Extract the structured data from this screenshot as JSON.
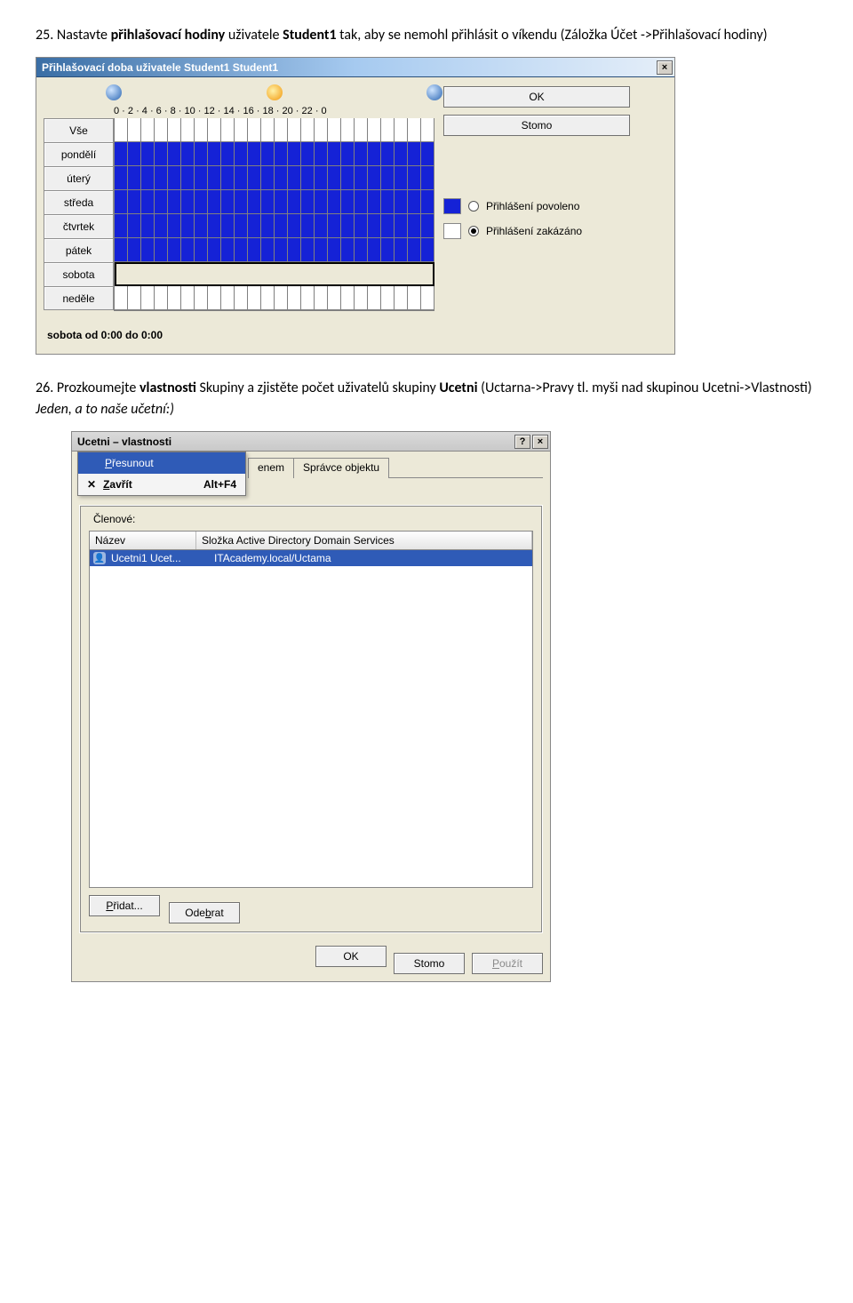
{
  "instr1": {
    "num": "25.",
    "pre": "Nastavte ",
    "b1": "přihlašovací hodiny",
    "mid": " uživatele ",
    "b2": "Student1",
    "post": "  tak, aby se nemohl přihlásit o víkendu (Záložka Účet ->Přihlašovací hodiny)"
  },
  "dlg1": {
    "title": "Přihlašovací doba uživatele Student1 Student1",
    "axis": "0 · 2 · 4 · 6 · 8 · 10 · 12 · 14 · 16 · 18 · 20 · 22 · 0",
    "days": [
      "Vše",
      "pondělí",
      "úterý",
      "středa",
      "čtvrtek",
      "pátek",
      "sobota",
      "neděle"
    ],
    "ok": "OK",
    "cancel": "Stomo",
    "legend_allow": "Přihlášení povoleno",
    "legend_deny": "Přihlášení zakázáno",
    "status": "sobota od 0:00 do 0:00",
    "allow_color": "#1522d6",
    "deny_color": "#ffffff",
    "allowed_rows": [
      1,
      2,
      3,
      4,
      5
    ],
    "selected_row": 6
  },
  "instr2": {
    "num": "26.",
    "pre": "Prozkoumejte ",
    "b1": "vlastnosti",
    "mid": " Skupiny a zjistěte počet uživatelů skupiny ",
    "b2": "Ucetni",
    "post": " (Uctarna->Pravy tl. myši nad skupinou Ucetni->Vlastnosti) ",
    "i": "Jeden, a to naše učetní:)"
  },
  "dlg2": {
    "title": "Ucetni – vlastnosti",
    "help": "?",
    "close": "×",
    "menu_move": "Přesunout",
    "menu_close": "Zavřít",
    "menu_close_acc": "Alt+F4",
    "tab_managed": "enem",
    "tab_owner": "Správce objektu",
    "group_label": "Členové:",
    "col_name": "Název",
    "col_path": "Složka Active Directory Domain Services",
    "row_name": "Ucetni1 Ucet...",
    "row_path": "ITAcademy.local/Uctama",
    "add": "Přidat...",
    "remove": "Odebrat",
    "ok": "OK",
    "storno": "Stomo",
    "apply": "Použít"
  }
}
